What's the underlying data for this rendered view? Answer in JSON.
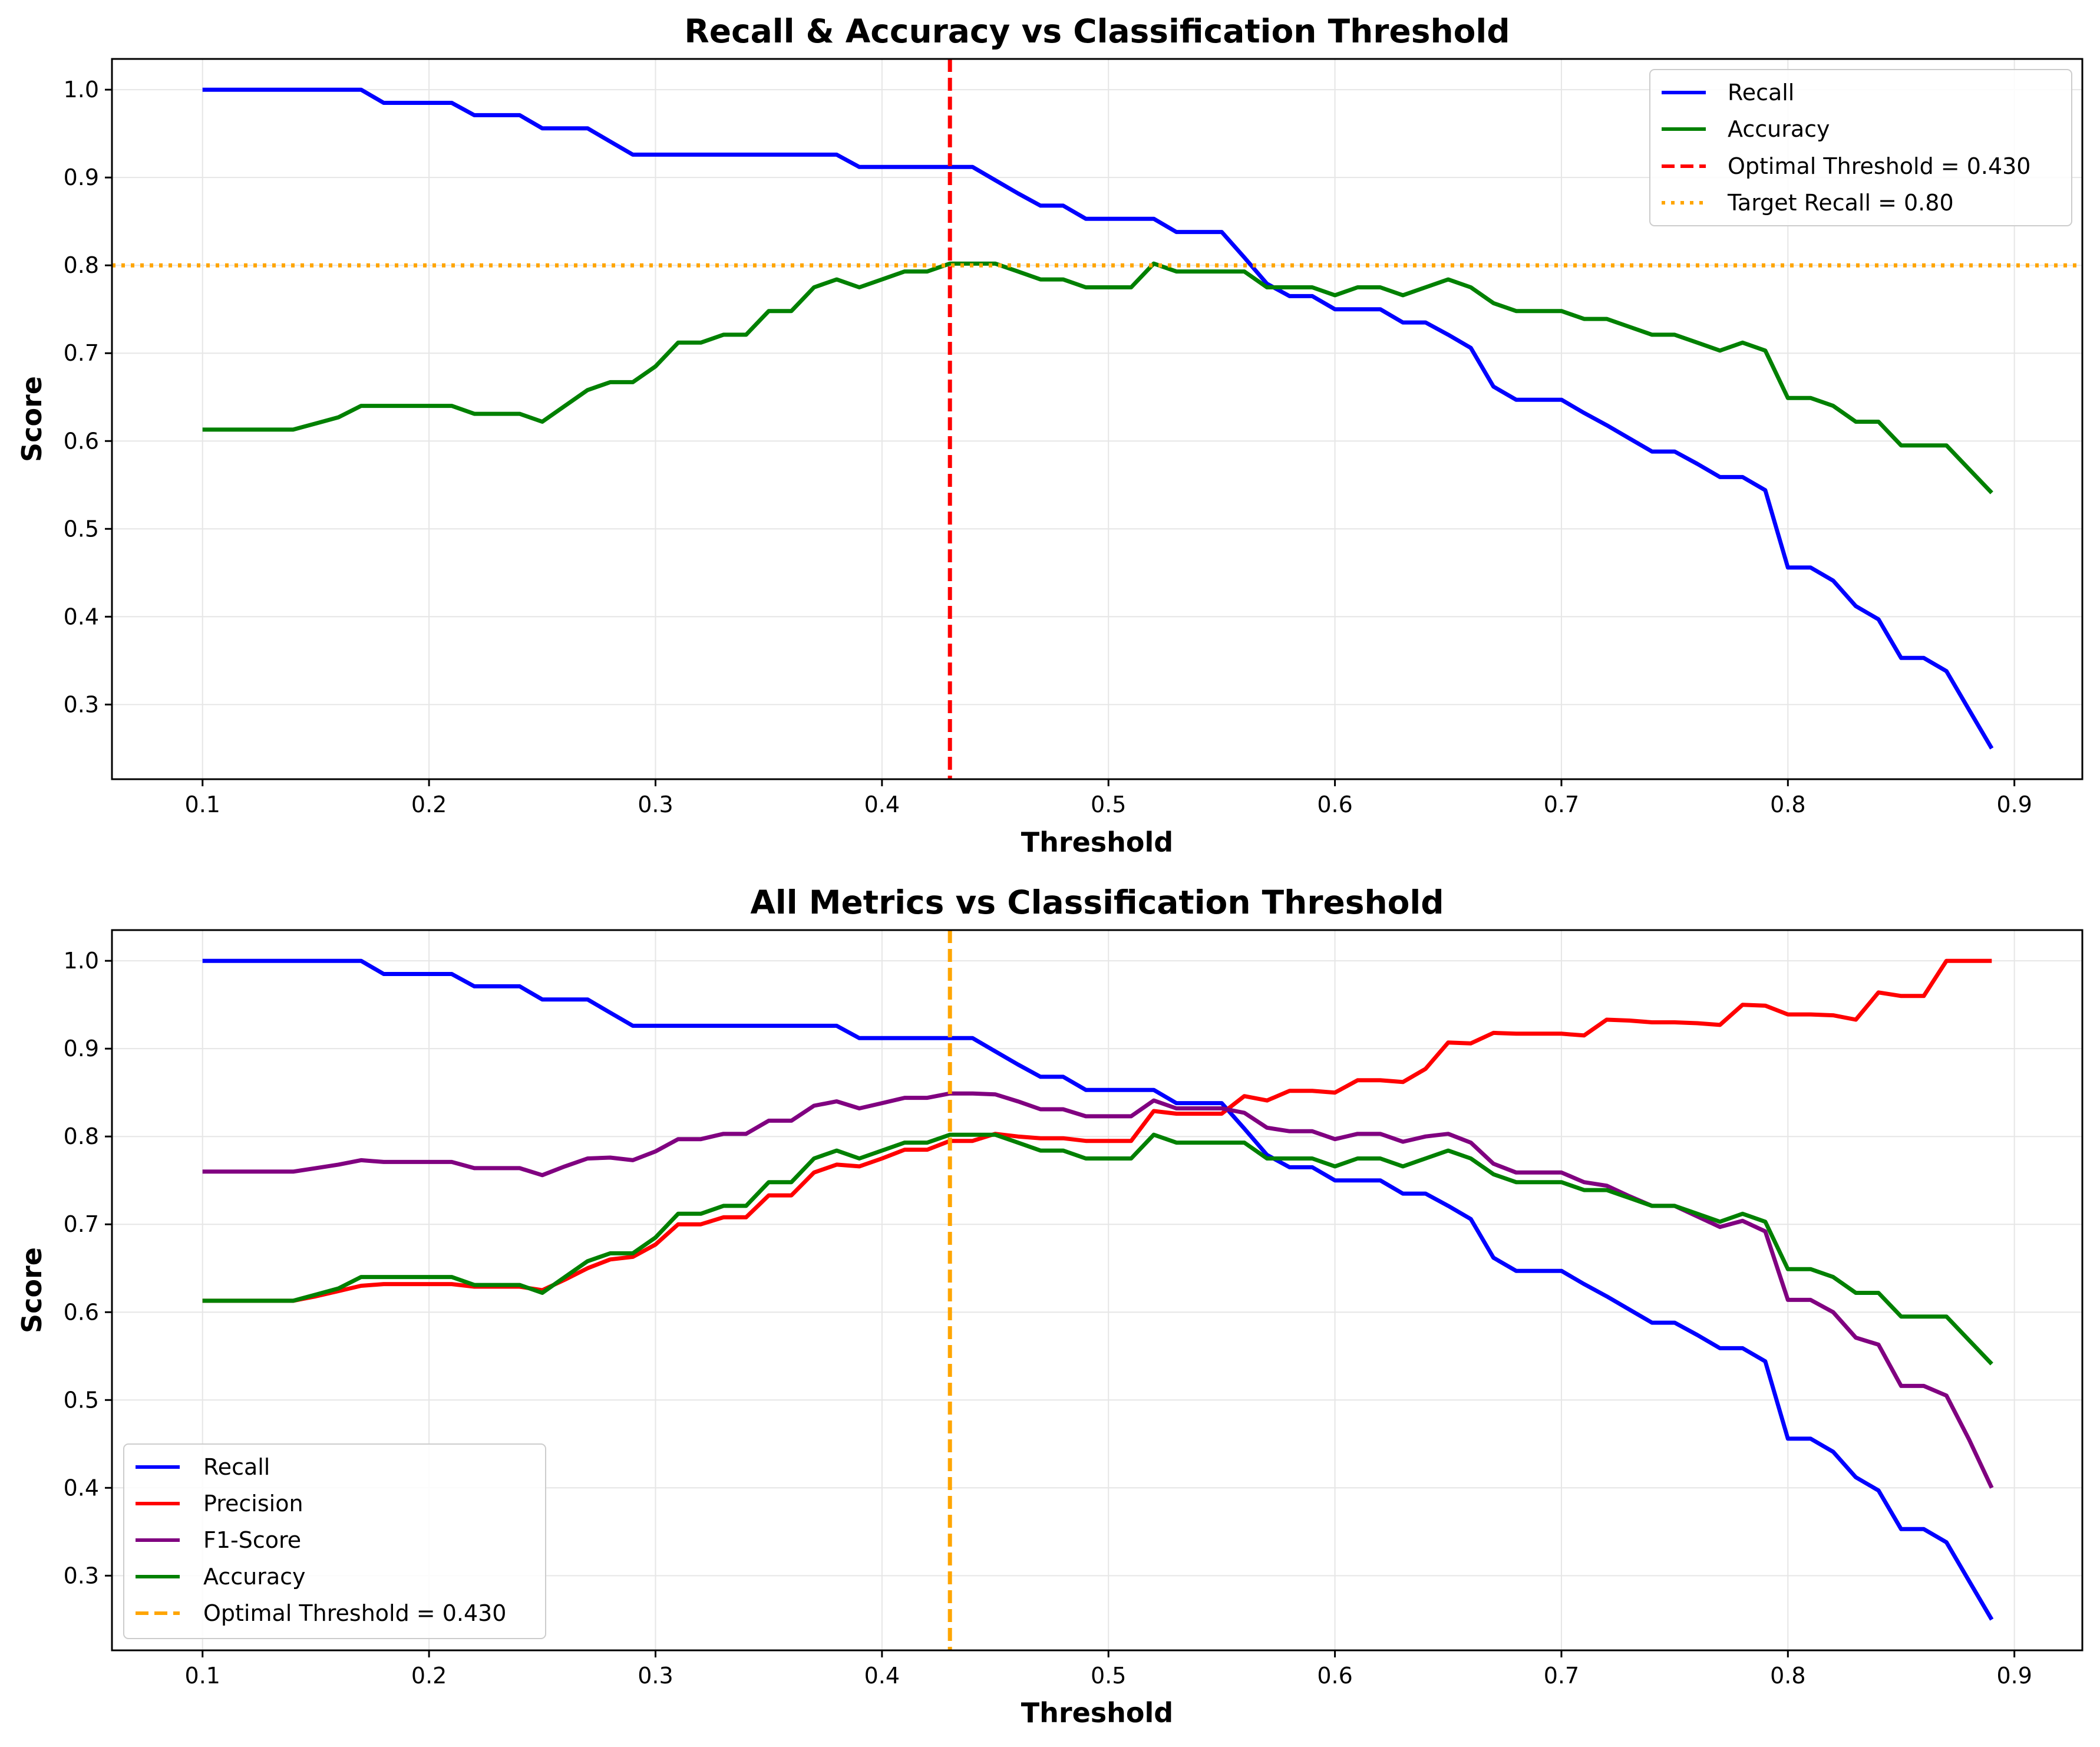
{
  "chart_data": [
    {
      "type": "line",
      "title": "Recall & Accuracy vs Classification Threshold",
      "xlabel": "Threshold",
      "ylabel": "Score",
      "xlim": [
        0.06,
        0.93
      ],
      "ylim": [
        0.215,
        1.035
      ],
      "xticks": [
        0.1,
        0.2,
        0.3,
        0.4,
        0.5,
        0.6,
        0.7,
        0.8,
        0.9
      ],
      "xtick_labels": [
        "0.1",
        "0.2",
        "0.3",
        "0.4",
        "0.5",
        "0.6",
        "0.7",
        "0.8",
        "0.9"
      ],
      "yticks": [
        0.3,
        0.4,
        0.5,
        0.6,
        0.7,
        0.8,
        0.9,
        1.0
      ],
      "ytick_labels": [
        "0.3",
        "0.4",
        "0.5",
        "0.6",
        "0.7",
        "0.8",
        "0.9",
        "1.0"
      ],
      "grid": true,
      "legend_position": "top-right",
      "series": [
        {
          "name": "Recall",
          "color": "#0000ff",
          "style": "solid",
          "key": "recall"
        },
        {
          "name": "Accuracy",
          "color": "#008000",
          "style": "solid",
          "key": "accuracy"
        }
      ],
      "vlines": [
        {
          "name": "Optimal Threshold = 0.430",
          "x": 0.43,
          "color": "#ff0000",
          "style": "dashed"
        }
      ],
      "hlines": [
        {
          "name": "Target Recall = 0.80",
          "y": 0.8,
          "color": "#ffa500",
          "style": "dotted"
        }
      ]
    },
    {
      "type": "line",
      "title": "All Metrics vs Classification Threshold",
      "xlabel": "Threshold",
      "ylabel": "Score",
      "xlim": [
        0.06,
        0.93
      ],
      "ylim": [
        0.215,
        1.035
      ],
      "xticks": [
        0.1,
        0.2,
        0.3,
        0.4,
        0.5,
        0.6,
        0.7,
        0.8,
        0.9
      ],
      "xtick_labels": [
        "0.1",
        "0.2",
        "0.3",
        "0.4",
        "0.5",
        "0.6",
        "0.7",
        "0.8",
        "0.9"
      ],
      "yticks": [
        0.3,
        0.4,
        0.5,
        0.6,
        0.7,
        0.8,
        0.9,
        1.0
      ],
      "ytick_labels": [
        "0.3",
        "0.4",
        "0.5",
        "0.6",
        "0.7",
        "0.8",
        "0.9",
        "1.0"
      ],
      "grid": true,
      "legend_position": "bottom-left",
      "series": [
        {
          "name": "Recall",
          "color": "#0000ff",
          "style": "solid",
          "key": "recall"
        },
        {
          "name": "Precision",
          "color": "#ff0000",
          "style": "solid",
          "key": "precision"
        },
        {
          "name": "F1-Score",
          "color": "#800080",
          "style": "solid",
          "key": "f1"
        },
        {
          "name": "Accuracy",
          "color": "#008000",
          "style": "solid",
          "key": "accuracy"
        }
      ],
      "vlines": [
        {
          "name": "Optimal Threshold = 0.430",
          "x": 0.43,
          "color": "#ffa500",
          "style": "dashed"
        }
      ],
      "hlines": []
    }
  ],
  "data": {
    "x": [
      0.1,
      0.11,
      0.12,
      0.13,
      0.14,
      0.15,
      0.16,
      0.17,
      0.18,
      0.19,
      0.2,
      0.21,
      0.22,
      0.23,
      0.24,
      0.25,
      0.26,
      0.27,
      0.28,
      0.29,
      0.3,
      0.31,
      0.32,
      0.33,
      0.34,
      0.35,
      0.36,
      0.37,
      0.38,
      0.39,
      0.4,
      0.41,
      0.42,
      0.43,
      0.44,
      0.45,
      0.46,
      0.47,
      0.48,
      0.49,
      0.5,
      0.51,
      0.52,
      0.53,
      0.54,
      0.55,
      0.56,
      0.57,
      0.58,
      0.59,
      0.6,
      0.61,
      0.62,
      0.63,
      0.64,
      0.65,
      0.66,
      0.67,
      0.68,
      0.69,
      0.7,
      0.71,
      0.72,
      0.73,
      0.74,
      0.75,
      0.76,
      0.77,
      0.78,
      0.79,
      0.8,
      0.81,
      0.82,
      0.83,
      0.84,
      0.85,
      0.86,
      0.87,
      0.88,
      0.89
    ],
    "recall": [
      1.0,
      1.0,
      1.0,
      1.0,
      1.0,
      1.0,
      1.0,
      1.0,
      0.985,
      0.985,
      0.985,
      0.985,
      0.971,
      0.971,
      0.971,
      0.956,
      0.956,
      0.956,
      0.941,
      0.926,
      0.926,
      0.926,
      0.926,
      0.926,
      0.926,
      0.926,
      0.926,
      0.926,
      0.926,
      0.912,
      0.912,
      0.912,
      0.912,
      0.912,
      0.912,
      0.897,
      0.882,
      0.868,
      0.868,
      0.853,
      0.853,
      0.853,
      0.853,
      0.838,
      0.838,
      0.838,
      0.809,
      0.779,
      0.765,
      0.765,
      0.75,
      0.75,
      0.75,
      0.735,
      0.735,
      0.721,
      0.706,
      0.662,
      0.647,
      0.647,
      0.647,
      0.632,
      0.618,
      0.603,
      0.588,
      0.588,
      0.574,
      0.559,
      0.559,
      0.544,
      0.456,
      0.456,
      0.441,
      0.412,
      0.397,
      0.353,
      0.353,
      0.338,
      0.294,
      0.25
    ],
    "accuracy": [
      0.613,
      0.613,
      0.613,
      0.613,
      0.613,
      0.62,
      0.627,
      0.64,
      0.64,
      0.64,
      0.64,
      0.64,
      0.631,
      0.631,
      0.631,
      0.622,
      0.64,
      0.658,
      0.667,
      0.667,
      0.685,
      0.712,
      0.712,
      0.721,
      0.721,
      0.748,
      0.748,
      0.775,
      0.784,
      0.775,
      0.784,
      0.793,
      0.793,
      0.802,
      0.802,
      0.802,
      0.793,
      0.784,
      0.784,
      0.775,
      0.775,
      0.775,
      0.802,
      0.793,
      0.793,
      0.793,
      0.793,
      0.775,
      0.775,
      0.775,
      0.766,
      0.775,
      0.775,
      0.766,
      0.775,
      0.784,
      0.775,
      0.757,
      0.748,
      0.748,
      0.748,
      0.739,
      0.739,
      0.73,
      0.721,
      0.721,
      0.712,
      0.703,
      0.712,
      0.703,
      0.649,
      0.649,
      0.64,
      0.622,
      0.622,
      0.595,
      0.595,
      0.595,
      0.568,
      0.541
    ],
    "precision": [
      0.613,
      0.613,
      0.613,
      0.613,
      0.613,
      0.618,
      0.624,
      0.63,
      0.632,
      0.632,
      0.632,
      0.632,
      0.629,
      0.629,
      0.629,
      0.625,
      0.637,
      0.65,
      0.66,
      0.663,
      0.677,
      0.7,
      0.7,
      0.708,
      0.708,
      0.733,
      0.733,
      0.759,
      0.768,
      0.766,
      0.775,
      0.785,
      0.785,
      0.795,
      0.795,
      0.803,
      0.8,
      0.798,
      0.798,
      0.795,
      0.795,
      0.795,
      0.829,
      0.826,
      0.826,
      0.826,
      0.846,
      0.841,
      0.852,
      0.852,
      0.85,
      0.864,
      0.864,
      0.862,
      0.877,
      0.907,
      0.906,
      0.918,
      0.917,
      0.917,
      0.917,
      0.915,
      0.933,
      0.932,
      0.93,
      0.93,
      0.929,
      0.927,
      0.95,
      0.949,
      0.939,
      0.939,
      0.938,
      0.933,
      0.964,
      0.96,
      0.96,
      1.0,
      1.0,
      1.0
    ],
    "f1": [
      0.76,
      0.76,
      0.76,
      0.76,
      0.76,
      0.764,
      0.768,
      0.773,
      0.771,
      0.771,
      0.771,
      0.771,
      0.764,
      0.764,
      0.764,
      0.756,
      0.766,
      0.775,
      0.776,
      0.773,
      0.783,
      0.797,
      0.797,
      0.803,
      0.803,
      0.818,
      0.818,
      0.835,
      0.84,
      0.832,
      0.838,
      0.844,
      0.844,
      0.849,
      0.849,
      0.848,
      0.84,
      0.831,
      0.831,
      0.823,
      0.823,
      0.823,
      0.841,
      0.832,
      0.832,
      0.832,
      0.827,
      0.81,
      0.806,
      0.806,
      0.797,
      0.803,
      0.803,
      0.794,
      0.8,
      0.803,
      0.793,
      0.769,
      0.759,
      0.759,
      0.759,
      0.748,
      0.744,
      0.732,
      0.721,
      0.721,
      0.709,
      0.697,
      0.704,
      0.692,
      0.614,
      0.614,
      0.6,
      0.571,
      0.563,
      0.516,
      0.516,
      0.505,
      0.455,
      0.4
    ]
  }
}
